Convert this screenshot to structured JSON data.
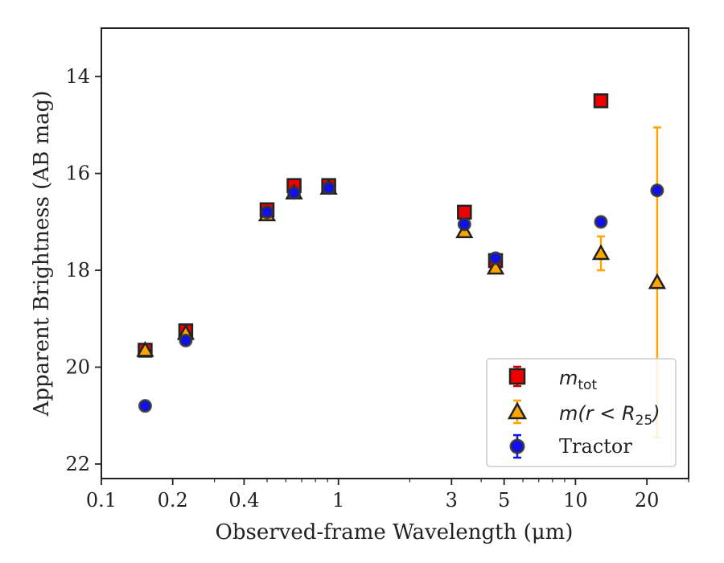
{
  "chart_data": {
    "type": "scatter",
    "xlabel": "Observed-frame Wavelength (μm)",
    "ylabel": "Apparent Brightness (AB mag)",
    "x_scale": "log",
    "xlim": [
      0.1,
      30
    ],
    "ylim": [
      22.3,
      13.0
    ],
    "y_inverted": true,
    "grid": false,
    "legend_position": "lower-right",
    "x_ticks": [
      {
        "value": 0.1,
        "label": "0.1"
      },
      {
        "value": 0.2,
        "label": "0.2"
      },
      {
        "value": 0.4,
        "label": "0.4"
      },
      {
        "value": 1,
        "label": "1"
      },
      {
        "value": 3,
        "label": "3"
      },
      {
        "value": 5,
        "label": "5"
      },
      {
        "value": 10,
        "label": "10"
      },
      {
        "value": 20,
        "label": "20"
      }
    ],
    "y_ticks": [
      {
        "value": 14,
        "label": "14"
      },
      {
        "value": 16,
        "label": "16"
      },
      {
        "value": 18,
        "label": "18"
      },
      {
        "value": 20,
        "label": "20"
      },
      {
        "value": 22,
        "label": "22"
      }
    ],
    "series": [
      {
        "name": "m_tot",
        "label_main": "m",
        "label_sub": "tot",
        "marker": "square",
        "color": "#ee0000",
        "error_color": "#cc0000",
        "points": [
          {
            "x": 0.153,
            "y": 19.65,
            "err": 0
          },
          {
            "x": 0.227,
            "y": 19.25,
            "err": 0
          },
          {
            "x": 0.5,
            "y": 16.75,
            "err": 0
          },
          {
            "x": 0.65,
            "y": 16.25,
            "err": 0
          },
          {
            "x": 0.91,
            "y": 16.25,
            "err": 0
          },
          {
            "x": 3.4,
            "y": 16.8,
            "err": 0
          },
          {
            "x": 4.6,
            "y": 17.8,
            "err": 0
          },
          {
            "x": 12.8,
            "y": 14.5,
            "err": 0
          }
        ]
      },
      {
        "name": "m(r < R_25)",
        "label_main": "m(r < R",
        "label_sub": "25",
        "label_tail": ")",
        "marker": "triangle",
        "color": "#ffa500",
        "error_color": "#ffa500",
        "points": [
          {
            "x": 0.153,
            "y": 19.65,
            "err": 0
          },
          {
            "x": 0.227,
            "y": 19.3,
            "err": 0
          },
          {
            "x": 0.5,
            "y": 16.85,
            "err": 0
          },
          {
            "x": 0.65,
            "y": 16.4,
            "err": 0
          },
          {
            "x": 0.91,
            "y": 16.3,
            "err": 0
          },
          {
            "x": 3.4,
            "y": 17.2,
            "err": 0
          },
          {
            "x": 4.6,
            "y": 17.95,
            "err": 0
          },
          {
            "x": 12.8,
            "y": 17.65,
            "err": 0.35
          },
          {
            "x": 22.1,
            "y": 18.25,
            "err": 3.2
          }
        ]
      },
      {
        "name": "Tractor",
        "marker": "circle",
        "color": "#1010ee",
        "error_color": "#1010ee",
        "points": [
          {
            "x": 0.153,
            "y": 20.8,
            "err": 0
          },
          {
            "x": 0.227,
            "y": 19.45,
            "err": 0
          },
          {
            "x": 0.5,
            "y": 16.8,
            "err": 0
          },
          {
            "x": 0.65,
            "y": 16.4,
            "err": 0
          },
          {
            "x": 0.91,
            "y": 16.3,
            "err": 0
          },
          {
            "x": 3.4,
            "y": 17.05,
            "err": 0
          },
          {
            "x": 4.6,
            "y": 17.75,
            "err": 0
          },
          {
            "x": 12.8,
            "y": 17.0,
            "err": 0
          },
          {
            "x": 22.1,
            "y": 16.35,
            "err": 0
          }
        ]
      }
    ]
  }
}
